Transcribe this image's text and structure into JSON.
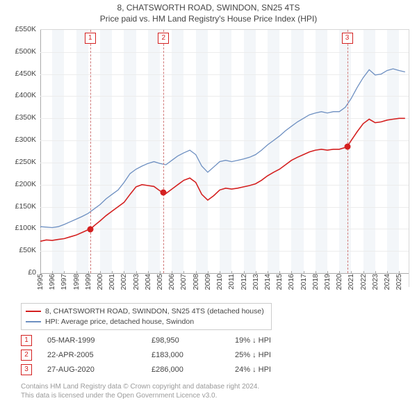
{
  "title_line1": "8, CHATSWORTH ROAD, SWINDON, SN25 4TS",
  "title_line2": "Price paid vs. HM Land Registry's House Price Index (HPI)",
  "chart": {
    "type": "line",
    "xlim": [
      1995,
      2025.8
    ],
    "ylim": [
      0,
      550
    ],
    "ytick_step": 50,
    "ytick_format_prefix": "£",
    "ytick_format_suffix": "K",
    "xtick_step": 1,
    "grid_color": "#ececec",
    "axis_color": "#aaaaaa",
    "background_color": "#ffffff",
    "band_color": "#f3f6f9",
    "band_years": [
      1996,
      1998,
      2000,
      2002,
      2004,
      2006,
      2008,
      2010,
      2012,
      2014,
      2016,
      2018,
      2020,
      2022,
      2024
    ],
    "title_fontsize": 12,
    "label_fontsize": 10.5,
    "series": [
      {
        "name": "8, CHATSWORTH ROAD, SWINDON, SN25 4TS (detached house)",
        "color": "#d42020",
        "width": 1.6,
        "data": [
          [
            1995.0,
            72
          ],
          [
            1995.5,
            75
          ],
          [
            1996.0,
            74
          ],
          [
            1996.5,
            76
          ],
          [
            1997.0,
            78
          ],
          [
            1997.5,
            82
          ],
          [
            1998.0,
            86
          ],
          [
            1998.5,
            92
          ],
          [
            1999.0,
            98
          ],
          [
            1999.17,
            99
          ],
          [
            1999.5,
            107
          ],
          [
            2000.0,
            118
          ],
          [
            2000.5,
            130
          ],
          [
            2001.0,
            140
          ],
          [
            2001.5,
            150
          ],
          [
            2002.0,
            160
          ],
          [
            2002.5,
            178
          ],
          [
            2003.0,
            195
          ],
          [
            2003.5,
            200
          ],
          [
            2004.0,
            198
          ],
          [
            2004.5,
            196
          ],
          [
            2005.0,
            186
          ],
          [
            2005.3,
            183
          ],
          [
            2005.5,
            180
          ],
          [
            2006.0,
            190
          ],
          [
            2006.5,
            200
          ],
          [
            2007.0,
            210
          ],
          [
            2007.5,
            215
          ],
          [
            2008.0,
            205
          ],
          [
            2008.5,
            178
          ],
          [
            2009.0,
            165
          ],
          [
            2009.5,
            175
          ],
          [
            2010.0,
            188
          ],
          [
            2010.5,
            192
          ],
          [
            2011.0,
            190
          ],
          [
            2011.5,
            192
          ],
          [
            2012.0,
            195
          ],
          [
            2012.5,
            198
          ],
          [
            2013.0,
            202
          ],
          [
            2013.5,
            210
          ],
          [
            2014.0,
            220
          ],
          [
            2014.5,
            228
          ],
          [
            2015.0,
            235
          ],
          [
            2015.5,
            245
          ],
          [
            2016.0,
            255
          ],
          [
            2016.5,
            262
          ],
          [
            2017.0,
            268
          ],
          [
            2017.5,
            274
          ],
          [
            2018.0,
            278
          ],
          [
            2018.5,
            280
          ],
          [
            2019.0,
            278
          ],
          [
            2019.5,
            280
          ],
          [
            2020.0,
            280
          ],
          [
            2020.5,
            284
          ],
          [
            2020.66,
            286
          ],
          [
            2021.0,
            300
          ],
          [
            2021.5,
            320
          ],
          [
            2022.0,
            338
          ],
          [
            2022.5,
            348
          ],
          [
            2023.0,
            340
          ],
          [
            2023.5,
            342
          ],
          [
            2024.0,
            346
          ],
          [
            2024.5,
            348
          ],
          [
            2025.0,
            350
          ],
          [
            2025.5,
            350
          ]
        ]
      },
      {
        "name": "HPI: Average price, detached house, Swindon",
        "color": "#6d8fc1",
        "width": 1.3,
        "data": [
          [
            1995.0,
            105
          ],
          [
            1995.5,
            104
          ],
          [
            1996.0,
            103
          ],
          [
            1996.5,
            105
          ],
          [
            1997.0,
            110
          ],
          [
            1997.5,
            116
          ],
          [
            1998.0,
            122
          ],
          [
            1998.5,
            128
          ],
          [
            1999.0,
            135
          ],
          [
            1999.5,
            145
          ],
          [
            2000.0,
            155
          ],
          [
            2000.5,
            168
          ],
          [
            2001.0,
            178
          ],
          [
            2001.5,
            188
          ],
          [
            2002.0,
            205
          ],
          [
            2002.5,
            225
          ],
          [
            2003.0,
            235
          ],
          [
            2003.5,
            242
          ],
          [
            2004.0,
            248
          ],
          [
            2004.5,
            252
          ],
          [
            2005.0,
            248
          ],
          [
            2005.5,
            245
          ],
          [
            2006.0,
            255
          ],
          [
            2006.5,
            265
          ],
          [
            2007.0,
            272
          ],
          [
            2007.5,
            278
          ],
          [
            2008.0,
            268
          ],
          [
            2008.5,
            242
          ],
          [
            2009.0,
            228
          ],
          [
            2009.5,
            240
          ],
          [
            2010.0,
            252
          ],
          [
            2010.5,
            255
          ],
          [
            2011.0,
            252
          ],
          [
            2011.5,
            255
          ],
          [
            2012.0,
            258
          ],
          [
            2012.5,
            262
          ],
          [
            2013.0,
            268
          ],
          [
            2013.5,
            278
          ],
          [
            2014.0,
            290
          ],
          [
            2014.5,
            300
          ],
          [
            2015.0,
            310
          ],
          [
            2015.5,
            322
          ],
          [
            2016.0,
            332
          ],
          [
            2016.5,
            342
          ],
          [
            2017.0,
            350
          ],
          [
            2017.5,
            358
          ],
          [
            2018.0,
            362
          ],
          [
            2018.5,
            365
          ],
          [
            2019.0,
            362
          ],
          [
            2019.5,
            365
          ],
          [
            2020.0,
            365
          ],
          [
            2020.5,
            375
          ],
          [
            2021.0,
            395
          ],
          [
            2021.5,
            420
          ],
          [
            2022.0,
            442
          ],
          [
            2022.5,
            460
          ],
          [
            2023.0,
            448
          ],
          [
            2023.5,
            450
          ],
          [
            2024.0,
            458
          ],
          [
            2024.5,
            462
          ],
          [
            2025.0,
            458
          ],
          [
            2025.5,
            455
          ]
        ]
      }
    ],
    "sale_markers": [
      {
        "n": "1",
        "year": 1999.17,
        "value": 99
      },
      {
        "n": "2",
        "year": 2005.3,
        "value": 183
      },
      {
        "n": "3",
        "year": 2020.66,
        "value": 286
      }
    ],
    "marker_color": "#d42020",
    "marker_dash_color": "#d07878"
  },
  "legend": {
    "items": [
      {
        "color": "#d42020",
        "label": "8, CHATSWORTH ROAD, SWINDON, SN25 4TS (detached house)"
      },
      {
        "color": "#6d8fc1",
        "label": "HPI: Average price, detached house, Swindon"
      }
    ]
  },
  "sales": [
    {
      "n": "1",
      "date": "05-MAR-1999",
      "price": "£98,950",
      "delta": "19% ↓ HPI"
    },
    {
      "n": "2",
      "date": "22-APR-2005",
      "price": "£183,000",
      "delta": "25% ↓ HPI"
    },
    {
      "n": "3",
      "date": "27-AUG-2020",
      "price": "£286,000",
      "delta": "24% ↓ HPI"
    }
  ],
  "footer_line1": "Contains HM Land Registry data © Crown copyright and database right 2024.",
  "footer_line2": "This data is licensed under the Open Government Licence v3.0."
}
